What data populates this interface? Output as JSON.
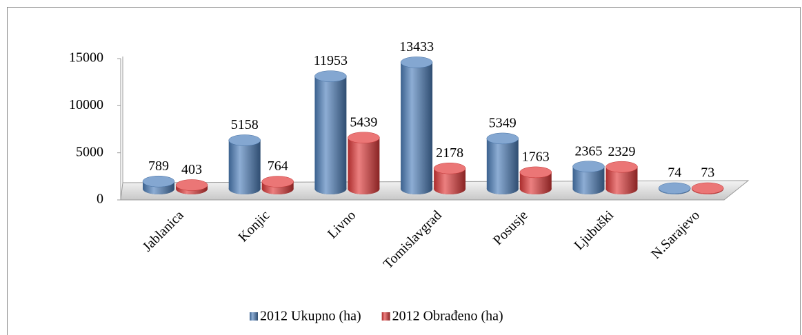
{
  "chart_data": {
    "type": "bar",
    "categories": [
      "Jablanica",
      "Konjic",
      "Livno",
      "Tomislavgrad",
      "Posusje",
      "Ljubuški",
      "N.Sarajevo"
    ],
    "series": [
      {
        "name": "2012 Ukupno (ha)",
        "color": "#4f81bd",
        "values": [
          789,
          5158,
          11953,
          13433,
          5349,
          2365,
          74
        ]
      },
      {
        "name": "2012 Obrađeno (ha)",
        "color": "#e23b3b",
        "values": [
          403,
          764,
          5439,
          2178,
          1763,
          2329,
          73
        ]
      }
    ],
    "ylim": [
      0,
      15000
    ],
    "yticks": [
      0,
      5000,
      10000,
      15000
    ]
  }
}
